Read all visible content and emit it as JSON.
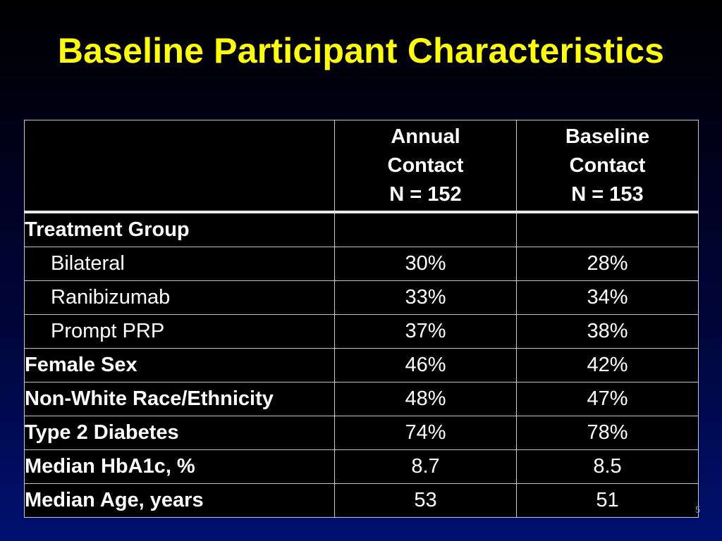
{
  "title": "Baseline Participant Characteristics",
  "colors": {
    "title": "#ffff00",
    "annual_header_bg": "#e87000",
    "baseline_header_bg": "#00c8cc"
  },
  "table": {
    "headers": {
      "annual": [
        "Annual",
        "Contact",
        "N = 152"
      ],
      "baseline": [
        "Baseline",
        "Contact",
        "N = 153"
      ]
    },
    "rows": [
      {
        "label": "Treatment Group",
        "annual": "",
        "baseline": ""
      },
      {
        "label": "Bilateral",
        "annual": "30%",
        "baseline": "28%"
      },
      {
        "label": "Ranibizumab",
        "annual": "33%",
        "baseline": "34%"
      },
      {
        "label": "Prompt PRP",
        "annual": "37%",
        "baseline": "38%"
      },
      {
        "label": "Female Sex",
        "annual": "46%",
        "baseline": "42%"
      },
      {
        "label": "Non-White Race/Ethnicity",
        "annual": "48%",
        "baseline": "47%"
      },
      {
        "label": "Type 2 Diabetes",
        "annual": "74%",
        "baseline": "78%"
      },
      {
        "label": "Median HbA1c, %",
        "annual": "8.7",
        "baseline": "8.5"
      },
      {
        "label": "Median Age, years",
        "annual": "53",
        "baseline": "51"
      }
    ]
  },
  "page_number": "5"
}
